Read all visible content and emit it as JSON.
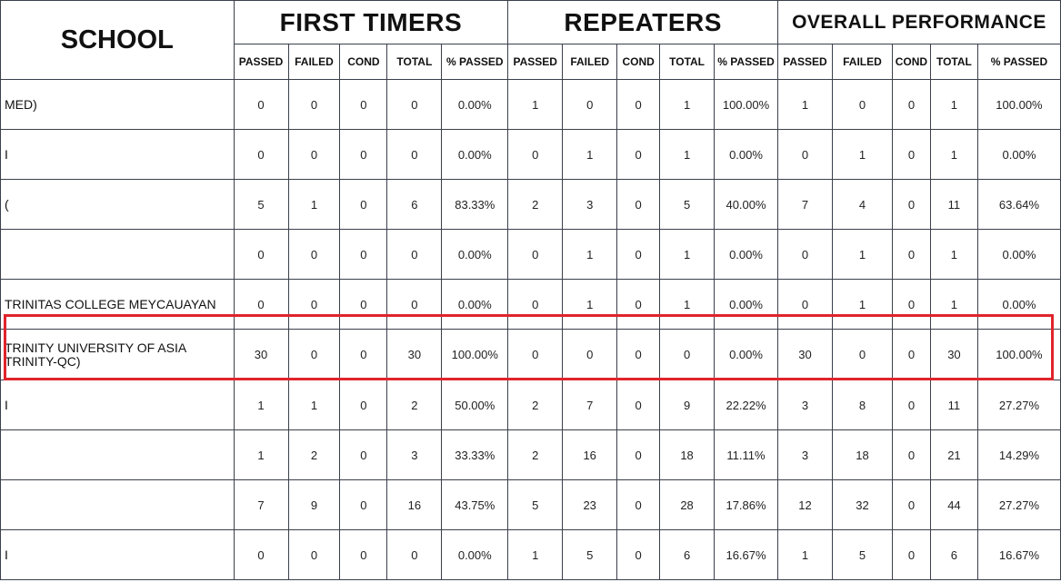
{
  "header": {
    "school_label": "SCHOOL",
    "groups": [
      "FIRST TIMERS",
      "REPEATERS",
      "OVERALL PERFORMANCE"
    ],
    "sub_columns": [
      "PASSED",
      "FAILED",
      "COND",
      "TOTAL",
      "% PASSED",
      "PASSED",
      "FAILED",
      "COND",
      "TOTAL",
      "% PASSED",
      "PASSED",
      "FAILED",
      "COND",
      "TOTAL",
      "% PASSED"
    ]
  },
  "rows": [
    {
      "school": [
        "MED)"
      ],
      "v": [
        "0",
        "0",
        "0",
        "0",
        "0.00%",
        "1",
        "0",
        "0",
        "1",
        "100.00%",
        "1",
        "0",
        "0",
        "1",
        "100.00%"
      ]
    },
    {
      "school": [
        "I"
      ],
      "v": [
        "0",
        "0",
        "0",
        "0",
        "0.00%",
        "0",
        "1",
        "0",
        "1",
        "0.00%",
        "0",
        "1",
        "0",
        "1",
        "0.00%"
      ]
    },
    {
      "school": [
        "("
      ],
      "v": [
        "5",
        "1",
        "0",
        "6",
        "83.33%",
        "2",
        "3",
        "0",
        "5",
        "40.00%",
        "7",
        "4",
        "0",
        "11",
        "63.64%"
      ]
    },
    {
      "school": [
        ""
      ],
      "v": [
        "0",
        "0",
        "0",
        "0",
        "0.00%",
        "0",
        "1",
        "0",
        "1",
        "0.00%",
        "0",
        "1",
        "0",
        "1",
        "0.00%"
      ]
    },
    {
      "school": [
        "TRINITAS COLLEGE MEYCAUAYAN"
      ],
      "v": [
        "0",
        "0",
        "0",
        "0",
        "0.00%",
        "0",
        "1",
        "0",
        "1",
        "0.00%",
        "0",
        "1",
        "0",
        "1",
        "0.00%"
      ]
    },
    {
      "school": [
        "TRINITY UNIVERSITY OF ASIA",
        "TRINITY-QC)"
      ],
      "highlighted": true,
      "v": [
        "30",
        "0",
        "0",
        "30",
        "100.00%",
        "0",
        "0",
        "0",
        "0",
        "0.00%",
        "30",
        "0",
        "0",
        "30",
        "100.00%"
      ]
    },
    {
      "school": [
        "I"
      ],
      "v": [
        "1",
        "1",
        "0",
        "2",
        "50.00%",
        "2",
        "7",
        "0",
        "9",
        "22.22%",
        "3",
        "8",
        "0",
        "11",
        "27.27%"
      ]
    },
    {
      "school": [
        ""
      ],
      "v": [
        "1",
        "2",
        "0",
        "3",
        "33.33%",
        "2",
        "16",
        "0",
        "18",
        "11.11%",
        "3",
        "18",
        "0",
        "21",
        "14.29%"
      ]
    },
    {
      "school": [
        ""
      ],
      "v": [
        "7",
        "9",
        "0",
        "16",
        "43.75%",
        "5",
        "23",
        "0",
        "28",
        "17.86%",
        "12",
        "32",
        "0",
        "44",
        "27.27%"
      ]
    },
    {
      "school": [
        "I"
      ],
      "v": [
        "0",
        "0",
        "0",
        "0",
        "0.00%",
        "1",
        "5",
        "0",
        "6",
        "16.67%",
        "1",
        "5",
        "0",
        "6",
        "16.67%"
      ]
    }
  ]
}
